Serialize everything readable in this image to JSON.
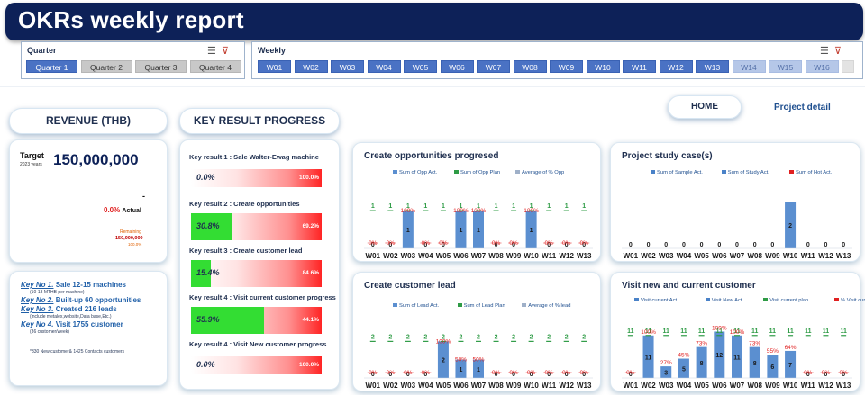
{
  "header": {
    "title": "OKRs weekly report"
  },
  "quarter_slicer": {
    "title": "Quarter",
    "icons": [
      "multi-select-icon",
      "clear-filter-icon"
    ],
    "items": [
      {
        "label": "Quarter 1",
        "state": "selected"
      },
      {
        "label": "Quarter 2",
        "state": "off"
      },
      {
        "label": "Quarter 3",
        "state": "off"
      },
      {
        "label": "Quarter 4",
        "state": "off"
      }
    ]
  },
  "weekly_slicer": {
    "title": "Weekly",
    "icons": [
      "multi-select-icon",
      "clear-filter-icon"
    ],
    "items": [
      {
        "label": "W01",
        "state": "selected"
      },
      {
        "label": "W02",
        "state": "selected"
      },
      {
        "label": "W03",
        "state": "selected"
      },
      {
        "label": "W04",
        "state": "selected"
      },
      {
        "label": "W05",
        "state": "selected"
      },
      {
        "label": "W06",
        "state": "selected"
      },
      {
        "label": "W07",
        "state": "selected"
      },
      {
        "label": "W08",
        "state": "selected"
      },
      {
        "label": "W09",
        "state": "selected"
      },
      {
        "label": "W10",
        "state": "selected"
      },
      {
        "label": "W11",
        "state": "selected"
      },
      {
        "label": "W12",
        "state": "selected"
      },
      {
        "label": "W13",
        "state": "selected"
      },
      {
        "label": "W14",
        "state": "dim"
      },
      {
        "label": "W15",
        "state": "dim"
      },
      {
        "label": "W16",
        "state": "dim"
      },
      {
        "label": "",
        "state": "blank"
      }
    ]
  },
  "nav": {
    "home": "HOME",
    "project_detail": "Project detail"
  },
  "sections": {
    "revenue": "REVENUE (THB)",
    "key_result": "KEY RESULT PROGRESS"
  },
  "revenue": {
    "target_label": "Target",
    "target_year": "2023 years",
    "target_value": "150,000,000",
    "actual_value": "-",
    "actual_pct": "0.0%",
    "actual_label": "Actual",
    "remaining_label": "Remaining",
    "remaining_value": "150,000,000",
    "remaining_pct": "100.0%"
  },
  "keys": [
    {
      "key": "Key No 1.",
      "text": "Sale 12-15  machines",
      "sub": "(10-13 MTHB per machine)"
    },
    {
      "key": "Key No 2.",
      "text": "Built-up 60 opportunities",
      "sub": ""
    },
    {
      "key": "Key No 3.",
      "text": "Created 216 leads",
      "sub": "(include metalex,website,Data base,Etc.)"
    },
    {
      "key": "Key No 4.",
      "text": "Visit 1755 customer",
      "sub": "(36 customer/week)"
    }
  ],
  "keys_footnote": "*330 New customer& 1425 Contacts customers",
  "key_results": [
    {
      "label": "Key result 1 : Sale Walter-Ewag machine",
      "progress": "0.0%",
      "remaining": "100.0%",
      "fill": 0.0
    },
    {
      "label": "Key result 2 : Create opportunities",
      "progress": "30.8%",
      "remaining": "69.2%",
      "fill": 0.308
    },
    {
      "label": "Key result 3 : Create customer lead",
      "progress": "15.4%",
      "remaining": "84.6%",
      "fill": 0.154
    },
    {
      "label": "Key result 4 : Visit current customer progress",
      "progress": "55.9%",
      "remaining": "44.1%",
      "fill": 0.559
    },
    {
      "label": "Key result 4 : Visit New customer progress",
      "progress": "0.0%",
      "remaining": "100.0%",
      "fill": 0.0
    }
  ],
  "colors": {
    "bar": "#5b8fd0",
    "plan": "#2e9b45",
    "pct": "#e02020",
    "accent": "#0d2158"
  },
  "chart_data": [
    {
      "id": "opp",
      "type": "bar",
      "title": "Create opportunities progresed",
      "legend": [
        "Sum of Opp Act.",
        "Sum of Opp Plan",
        "Average of % Opp"
      ],
      "categories": [
        "W01",
        "W02",
        "W03",
        "W04",
        "W05",
        "W06",
        "W07",
        "W08",
        "W09",
        "W10",
        "W11",
        "W12",
        "W13"
      ],
      "series": [
        {
          "name": "Sum of Opp Act.",
          "values": [
            0,
            0,
            1,
            0,
            0,
            1,
            1,
            0,
            0,
            1,
            0,
            0,
            0
          ]
        },
        {
          "name": "Sum of Opp Plan",
          "values": [
            1,
            1,
            1,
            1,
            1,
            1,
            1,
            1,
            1,
            1,
            1,
            1,
            1
          ]
        },
        {
          "name": "Average of % Opp",
          "labels": [
            "0%",
            "0%",
            "100%",
            "0%",
            "0%",
            "100%",
            "100%",
            "0%",
            "0%",
            "100%",
            "0%",
            "0%",
            "0%"
          ]
        }
      ],
      "ylim": [
        0,
        1.6
      ]
    },
    {
      "id": "study",
      "type": "bar",
      "title": "Project study case(s)",
      "legend": [
        "Sum of Sample Act.",
        "Sum of Study Act.",
        "Sum of Hot Act."
      ],
      "categories": [
        "W01",
        "W02",
        "W03",
        "W04",
        "W05",
        "W06",
        "W07",
        "W08",
        "W09",
        "W10",
        "W11",
        "W12",
        "W13"
      ],
      "series": [
        {
          "name": "Sum of Study Act.",
          "values": [
            0,
            0,
            0,
            0,
            0,
            0,
            0,
            0,
            0,
            2,
            0,
            0,
            0
          ]
        }
      ],
      "ylim": [
        0,
        2.2
      ]
    },
    {
      "id": "lead",
      "type": "bar",
      "title": "Create customer lead",
      "legend": [
        "Sum of Lead Act.",
        "Sum of Lead Plan",
        "Average of % lead"
      ],
      "categories": [
        "W01",
        "W02",
        "W03",
        "W04",
        "W05",
        "W06",
        "W07",
        "W08",
        "W09",
        "W10",
        "W11",
        "W12",
        "W13"
      ],
      "series": [
        {
          "name": "Sum of Lead Act.",
          "values": [
            0,
            0,
            0,
            0,
            2,
            1,
            1,
            0,
            0,
            0,
            0,
            0,
            0
          ]
        },
        {
          "name": "Sum of Lead Plan",
          "values": [
            2,
            2,
            2,
            2,
            2,
            2,
            2,
            2,
            2,
            2,
            2,
            2,
            2
          ]
        },
        {
          "name": "Average of % lead",
          "labels": [
            "0%",
            "0%",
            "0%",
            "0%",
            "100%",
            "50%",
            "50%",
            "0%",
            "0%",
            "0%",
            "0%",
            "0%",
            "0%"
          ]
        }
      ],
      "ylim": [
        0,
        3.2
      ]
    },
    {
      "id": "visit",
      "type": "bar",
      "title": "Visit new and current customer",
      "legend": [
        "Visit current Act.",
        "Visit New Act.",
        "Visit current plan",
        "% Visit current"
      ],
      "categories": [
        "W01",
        "W02",
        "W03",
        "W04",
        "W05",
        "W06",
        "W07",
        "W08",
        "W09",
        "W10",
        "W11",
        "W12",
        "W13"
      ],
      "series": [
        {
          "name": "Visit current Act.",
          "values": [
            0,
            11,
            3,
            5,
            8,
            12,
            11,
            8,
            6,
            7,
            0,
            0,
            0
          ]
        },
        {
          "name": "Visit New Act.",
          "values": [
            0,
            0,
            0,
            0,
            0,
            0,
            0,
            0,
            0,
            0,
            0,
            0,
            0
          ]
        },
        {
          "name": "Visit current plan",
          "values": [
            11,
            11,
            11,
            11,
            11,
            11,
            11,
            11,
            11,
            11,
            11,
            11,
            11
          ]
        },
        {
          "name": "% Visit current",
          "labels": [
            "0%",
            "100%",
            "27%",
            "45%",
            "73%",
            "109%",
            "100%",
            "73%",
            "55%",
            "64%",
            "0%",
            "0%",
            "0%"
          ]
        }
      ],
      "ylim": [
        0,
        17
      ]
    }
  ]
}
